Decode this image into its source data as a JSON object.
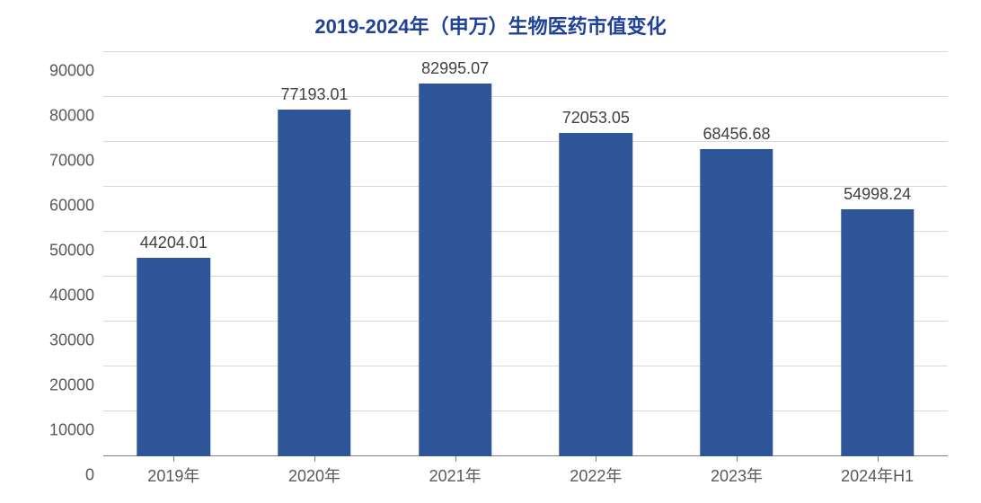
{
  "chart": {
    "type": "bar",
    "title": "2019-2024年（申万）生物医药市值变化",
    "title_color": "#20419a",
    "title_fontsize": 22,
    "background_color": "#ffffff",
    "grid_color": "#d9d9d9",
    "axis_color": "#808080",
    "label_color": "#595959",
    "value_label_color": "#404040",
    "label_fontsize": 18,
    "bar_color": "#2e5597",
    "bar_width_ratio": 0.52,
    "categories": [
      "2019年",
      "2020年",
      "2021年",
      "2022年",
      "2023年",
      "2024年H1"
    ],
    "values": [
      44204.01,
      77193.01,
      82995.07,
      72053.05,
      68456.68,
      54998.24
    ],
    "ylim": [
      0,
      90000
    ],
    "ytick_step": 10000,
    "yticks": [
      0,
      10000,
      20000,
      30000,
      40000,
      50000,
      60000,
      70000,
      80000,
      90000
    ]
  }
}
